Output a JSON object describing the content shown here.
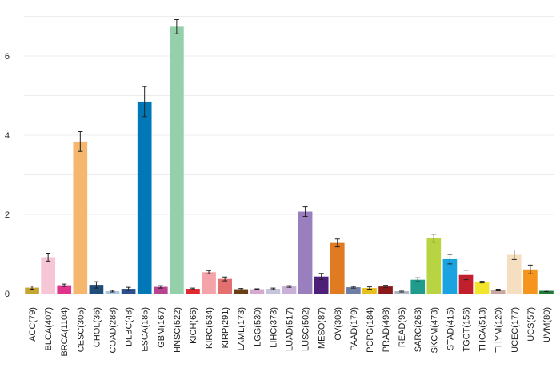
{
  "chart_data": {
    "type": "bar",
    "title": "",
    "xlabel": "",
    "ylabel": "",
    "ylim": [
      0,
      7.1
    ],
    "grid": true,
    "yticks": [
      0,
      2,
      4,
      6
    ],
    "categories": [
      "ACC(79)",
      "BLCA(407)",
      "BRCA(1104)",
      "CESC(305)",
      "CHOL(36)",
      "COAD(288)",
      "DLBC(48)",
      "ESCA(185)",
      "GBM(167)",
      "HNSC(522)",
      "KICH(66)",
      "KIRC(534)",
      "KIRP(291)",
      "LAML(173)",
      "LGG(530)",
      "LIHC(373)",
      "LUAD(517)",
      "LUSC(502)",
      "MESO(87)",
      "OV(308)",
      "PAAD(179)",
      "PCPG(184)",
      "PRAD(498)",
      "READ(95)",
      "SARC(263)",
      "SKCM(473)",
      "STAD(415)",
      "TGCT(156)",
      "THCA(513)",
      "THYM(120)",
      "UCEC(177)",
      "UCS(57)",
      "UVM(80)"
    ],
    "values": [
      0.15,
      0.92,
      0.21,
      3.84,
      0.22,
      0.06,
      0.12,
      4.85,
      0.17,
      6.74,
      0.12,
      0.54,
      0.37,
      0.11,
      0.11,
      0.12,
      0.18,
      2.07,
      0.43,
      1.28,
      0.16,
      0.14,
      0.18,
      0.06,
      0.35,
      1.4,
      0.87,
      0.47,
      0.29,
      0.09,
      0.98,
      0.61,
      0.07
    ],
    "errors": [
      0.04,
      0.1,
      0.03,
      0.25,
      0.08,
      0.02,
      0.04,
      0.38,
      0.03,
      0.18,
      0.02,
      0.04,
      0.05,
      0.02,
      0.01,
      0.02,
      0.02,
      0.12,
      0.08,
      0.1,
      0.02,
      0.03,
      0.03,
      0.02,
      0.05,
      0.1,
      0.12,
      0.12,
      0.02,
      0.02,
      0.12,
      0.11,
      0.02
    ],
    "colors": [
      "#c4a531",
      "#f7c6d6",
      "#e0338a",
      "#f5b66e",
      "#1f4e7a",
      "#a9c6e0",
      "#2c4f8e",
      "#0077b6",
      "#b8448f",
      "#94d1ab",
      "#e0282e",
      "#f4a3a8",
      "#e46f6f",
      "#6b3f14",
      "#d7a9d0",
      "#c4c4db",
      "#c8b0d8",
      "#9a7fbf",
      "#4e1f78",
      "#e07b21",
      "#6f7fa3",
      "#e8be1a",
      "#8a1a1a",
      "#adb8c2",
      "#1f9c8c",
      "#b9d442",
      "#1aa3e0",
      "#c21f2e",
      "#f2e62c",
      "#c9a89f",
      "#f6dfc0",
      "#f5951e",
      "#1f7a3a"
    ]
  }
}
